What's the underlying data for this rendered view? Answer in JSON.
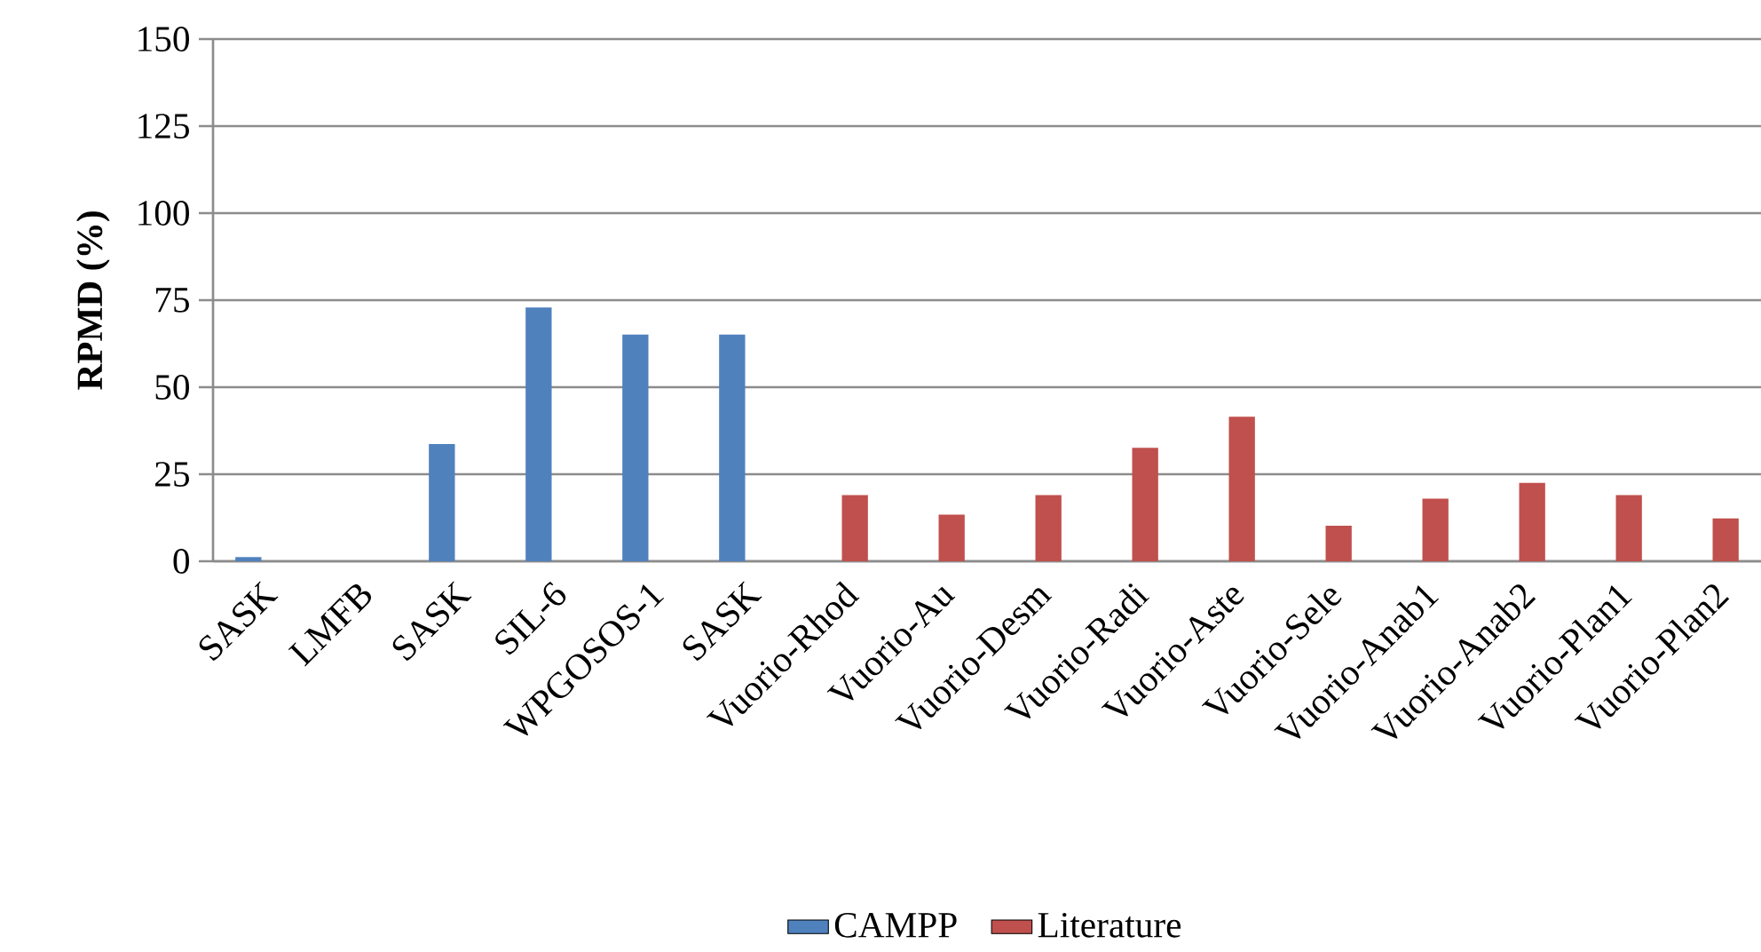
{
  "chart_data": {
    "type": "bar",
    "ylabel": "RPMD (%)",
    "categories": [
      "SASK",
      "LMFB",
      "SASK",
      "SIL-6",
      "WPGOSOS-1",
      "SASK",
      "Vuorio-Rhod",
      "Vuorio-Au",
      "Vuorio-Desm",
      "Vuorio-Radi",
      "Vuorio-Aste",
      "Vuorio-Sele",
      "Vuorio-Anab1",
      "Vuorio-Anab2",
      "Vuorio-Plan1",
      "Vuorio-Plan2"
    ],
    "series": [
      {
        "name": "CAMPP",
        "color": "#4f81bd",
        "values": [
          1.2,
          0,
          33.7,
          72.9,
          65.1,
          65.1,
          null,
          null,
          null,
          null,
          null,
          null,
          null,
          null,
          null,
          null
        ]
      },
      {
        "name": "Literature",
        "color": "#c0504d",
        "values": [
          null,
          null,
          null,
          null,
          null,
          null,
          19,
          13.4,
          19,
          32.6,
          41.5,
          10.2,
          18,
          22.5,
          19,
          12.3
        ]
      }
    ],
    "ylim": [
      0,
      150
    ],
    "yticks": [
      0,
      25,
      50,
      75,
      100,
      125,
      150
    ],
    "grid": "y",
    "legend": "bottom"
  }
}
